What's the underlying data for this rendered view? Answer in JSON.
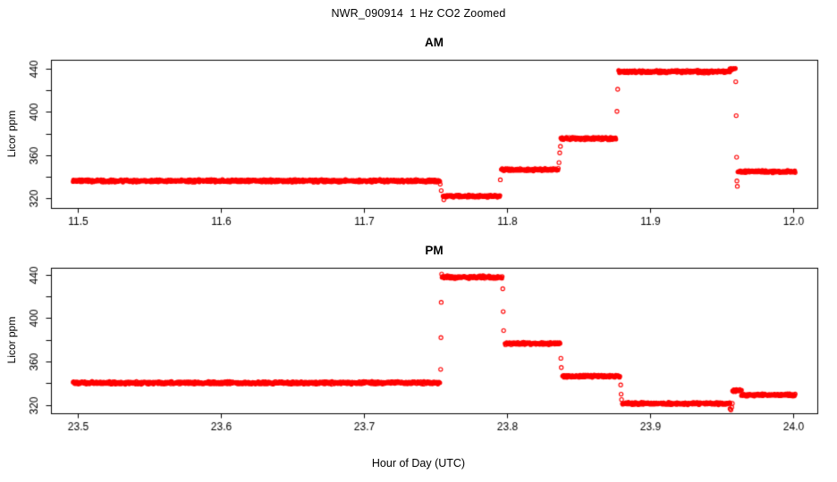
{
  "figure": {
    "title": "NWR_090914  1 Hz CO2 Zoomed",
    "xlabel": "Hour of Day (UTC)",
    "background": "#ffffff",
    "point_color": "#ff0000",
    "axis_color": "#000000"
  },
  "chart_data": [
    {
      "type": "scatter",
      "panel": "AM",
      "title": "AM",
      "ylabel": "Licor ppm",
      "marker": "open-circle",
      "sample_rate_hz": 1,
      "grid": false,
      "xlim": [
        11.4815,
        12.017
      ],
      "ylim": [
        310.9,
        448.3
      ],
      "xticks": [
        11.5,
        11.6,
        11.7,
        11.8,
        11.9,
        12.0
      ],
      "xtick_labels": [
        "11.5",
        "11.6",
        "11.7",
        "11.8",
        "11.9",
        "12.0"
      ],
      "yticks": [
        320,
        340,
        360,
        380,
        400,
        420,
        440
      ],
      "ytick_labels": [
        "320",
        "",
        "360",
        "",
        "400",
        "",
        "440"
      ],
      "segments": [
        {
          "x0": 11.497,
          "x1": 11.7532,
          "y": 336.0,
          "noise": 1.0
        },
        {
          "x0": 11.7555,
          "x1": 11.7952,
          "y": 321.8,
          "noise": 0.9
        },
        {
          "x0": 11.7962,
          "x1": 11.836,
          "y": 346.5,
          "noise": 0.9
        },
        {
          "x0": 11.8378,
          "x1": 11.8762,
          "y": 375.3,
          "noise": 0.9
        },
        {
          "x0": 11.8782,
          "x1": 11.956,
          "y": 437.3,
          "noise": 1.0
        },
        {
          "x0": 11.956,
          "x1": 11.9597,
          "y": 439.8,
          "noise": 0.8
        },
        {
          "x0": 11.9615,
          "x1": 12.0015,
          "y": 344.6,
          "noise": 0.9
        }
      ],
      "transition_points": [
        [
          11.7535,
          333.0
        ],
        [
          11.7542,
          327.0
        ],
        [
          11.756,
          318.5
        ],
        [
          11.7955,
          337.0
        ],
        [
          11.8365,
          353.0
        ],
        [
          11.837,
          362.0
        ],
        [
          11.8375,
          368.0
        ],
        [
          11.877,
          400.5
        ],
        [
          11.8775,
          421.0
        ],
        [
          11.96,
          428.0
        ],
        [
          11.9603,
          396.5
        ],
        [
          11.9606,
          358.0
        ],
        [
          11.9608,
          336.0
        ],
        [
          11.9611,
          331.0
        ]
      ]
    },
    {
      "type": "scatter",
      "panel": "PM",
      "title": "PM",
      "ylabel": "Licor ppm",
      "marker": "open-circle",
      "sample_rate_hz": 1,
      "grid": false,
      "xlim": [
        23.4815,
        24.017
      ],
      "ylim": [
        312.4,
        446.7
      ],
      "xticks": [
        23.5,
        23.6,
        23.7,
        23.8,
        23.9,
        24.0
      ],
      "xtick_labels": [
        "23.5",
        "23.6",
        "23.7",
        "23.8",
        "23.9",
        "24.0"
      ],
      "yticks": [
        320,
        340,
        360,
        380,
        400,
        420,
        440
      ],
      "ytick_labels": [
        "320",
        "",
        "360",
        "",
        "400",
        "",
        "440"
      ],
      "segments": [
        {
          "x0": 23.497,
          "x1": 23.7532,
          "y": 340.4,
          "noise": 1.0
        },
        {
          "x0": 23.7548,
          "x1": 23.7968,
          "y": 437.6,
          "noise": 1.0
        },
        {
          "x0": 23.7988,
          "x1": 23.8372,
          "y": 376.6,
          "noise": 0.9
        },
        {
          "x0": 23.839,
          "x1": 23.879,
          "y": 346.5,
          "noise": 0.9
        },
        {
          "x0": 23.8808,
          "x1": 23.956,
          "y": 321.3,
          "noise": 0.9
        },
        {
          "x0": 23.9578,
          "x1": 23.964,
          "y": 333.3,
          "noise": 0.9
        },
        {
          "x0": 23.964,
          "x1": 24.0015,
          "y": 329.3,
          "noise": 0.9
        }
      ],
      "transition_points": [
        [
          23.7538,
          352.8
        ],
        [
          23.754,
          382.0
        ],
        [
          23.7542,
          414.5
        ],
        [
          23.7545,
          440.5
        ],
        [
          23.7972,
          427.0
        ],
        [
          23.7975,
          406.0
        ],
        [
          23.7978,
          388.5
        ],
        [
          23.8378,
          363.0
        ],
        [
          23.8381,
          354.5
        ],
        [
          23.8796,
          338.5
        ],
        [
          23.8799,
          330.0
        ],
        [
          23.8802,
          325.0
        ],
        [
          23.956,
          316.5
        ],
        [
          23.9566,
          315.5
        ],
        [
          23.9572,
          318.0
        ],
        [
          23.9576,
          321.5
        ]
      ]
    }
  ]
}
